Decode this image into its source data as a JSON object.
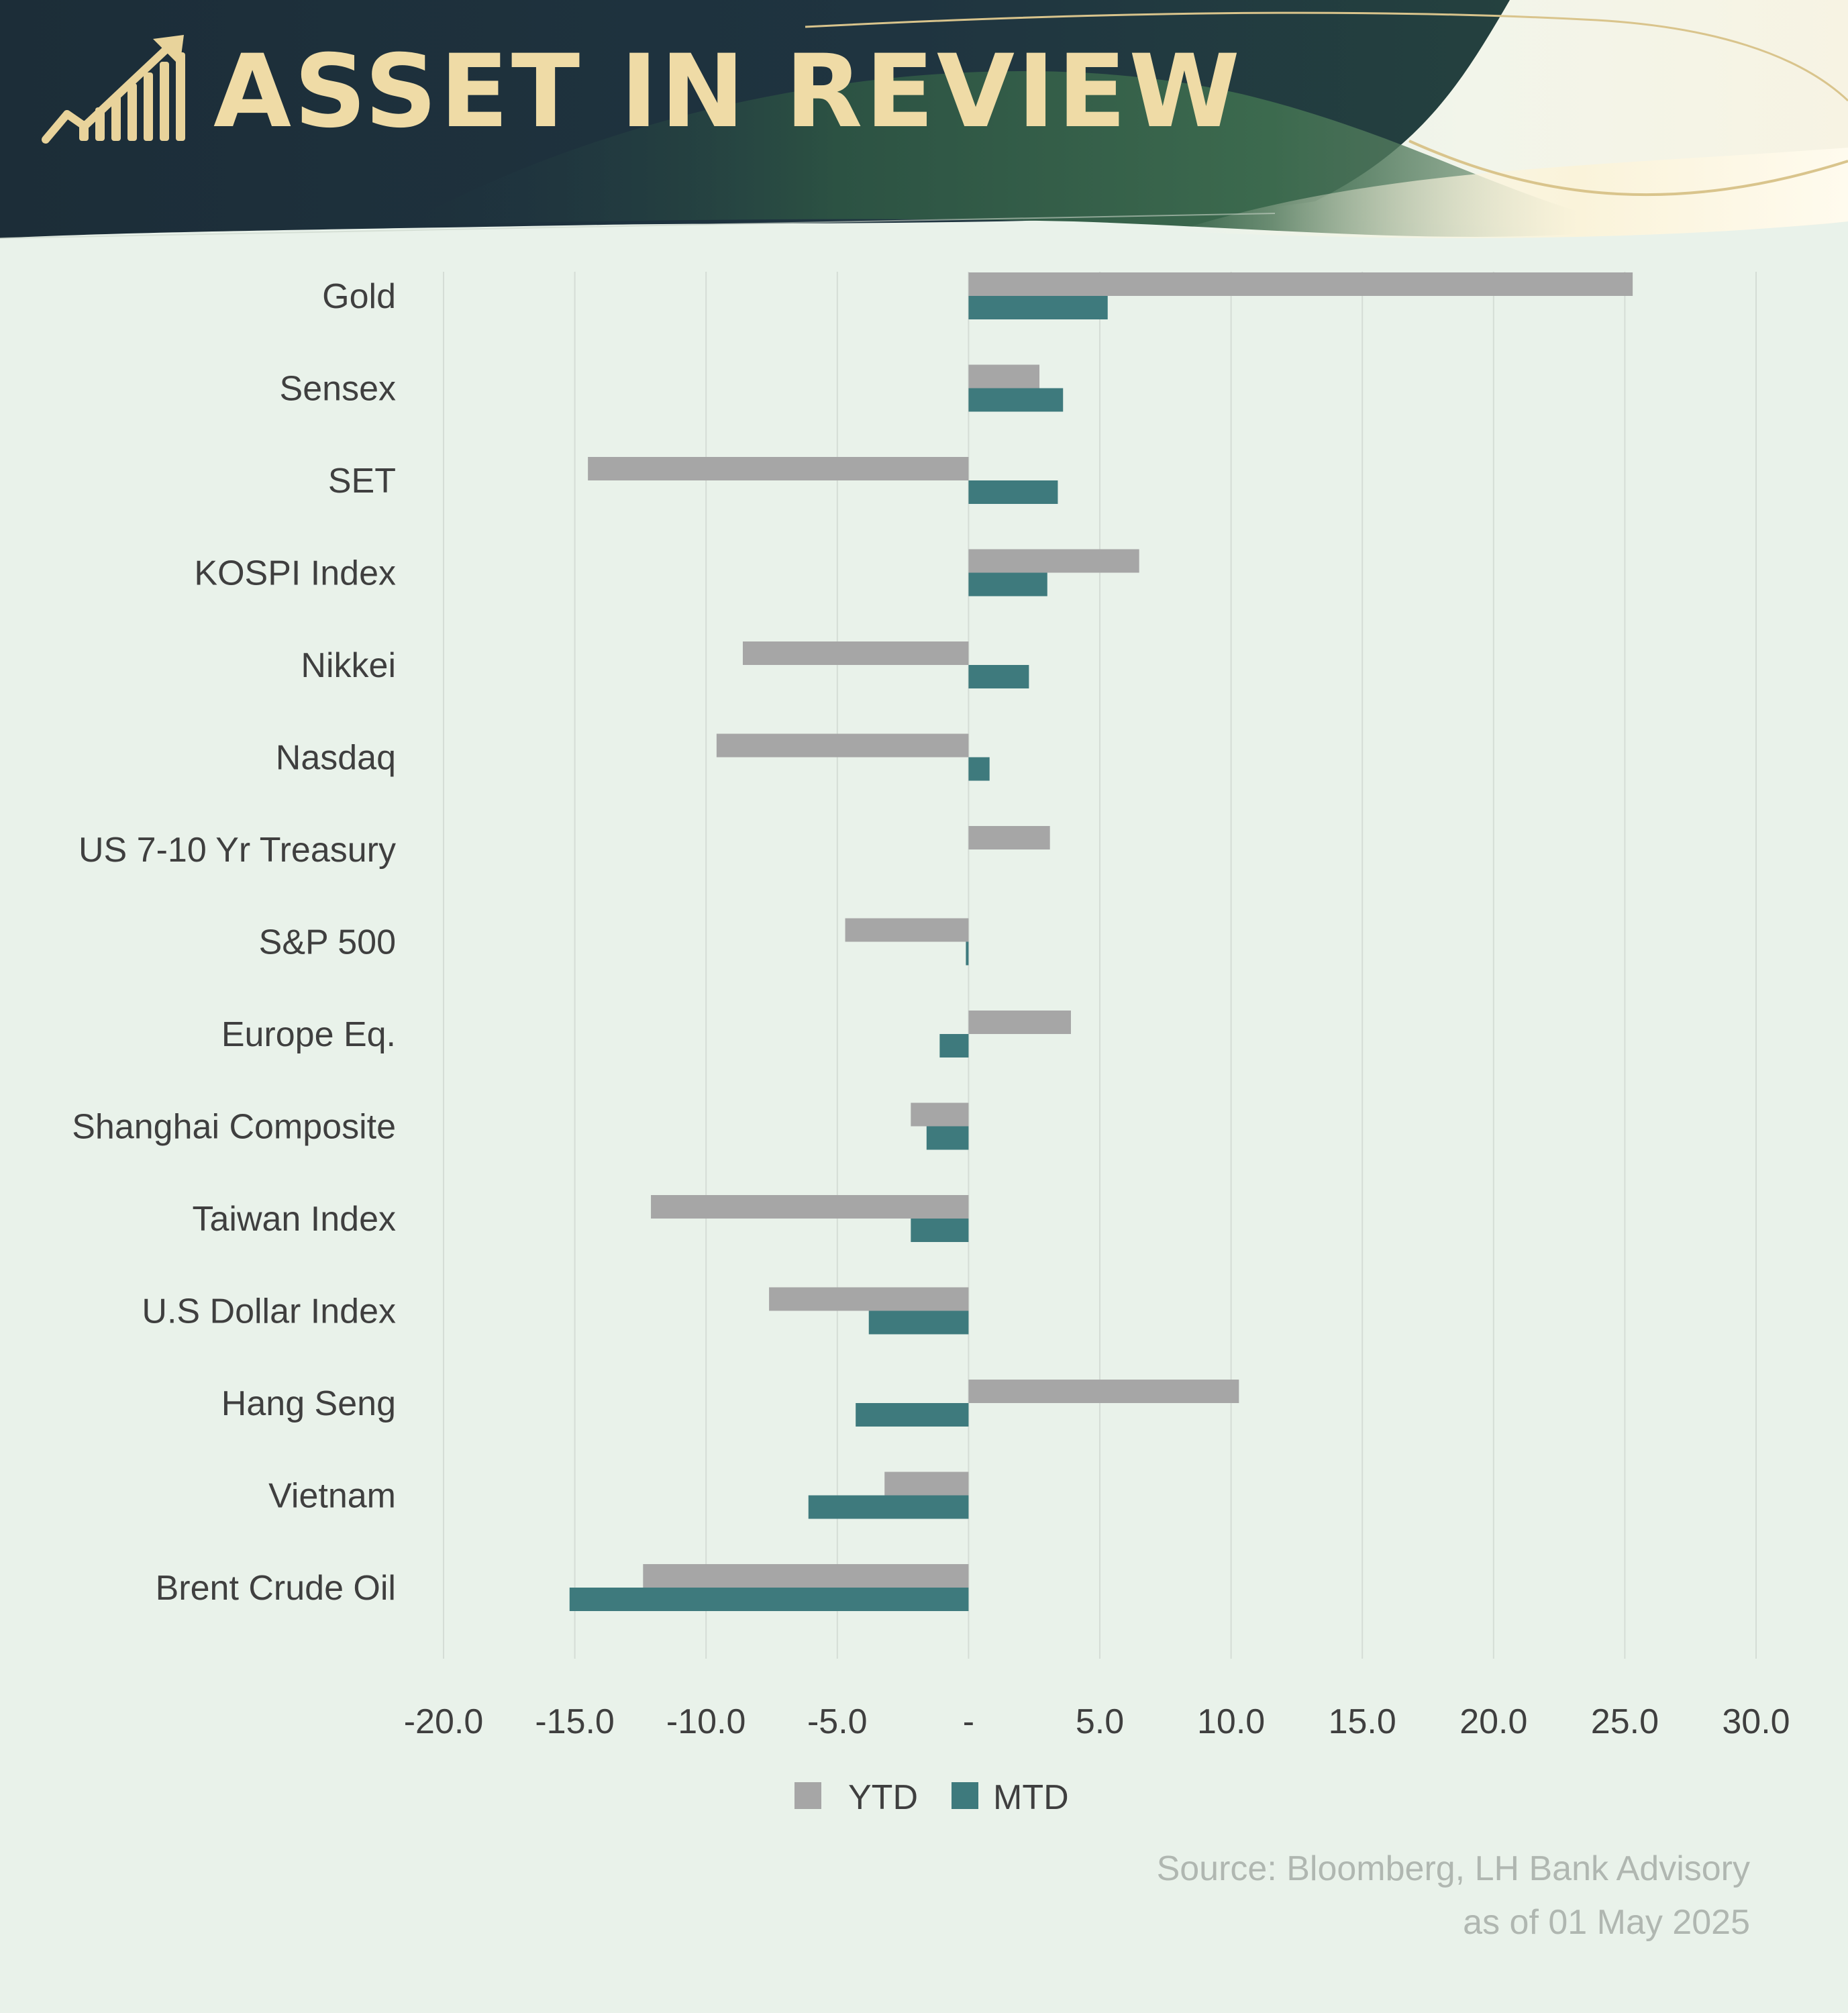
{
  "header": {
    "title": "ASSET IN REVIEW",
    "logo_icon": "bar-growth-arrow-icon"
  },
  "colors": {
    "banner_dark": "#1e2f3a",
    "banner_green": "#2f5a45",
    "title_gold": "#efdba6",
    "background": "#e9f2ea",
    "ytd": "#a6a6a6",
    "mtd": "#3e7a7d",
    "grid": "#d5ddd6",
    "label": "#3f3f3f",
    "source": "#b0b7b1"
  },
  "chart_data": {
    "type": "bar",
    "orientation": "horizontal",
    "categories": [
      "Gold",
      "Sensex",
      "SET",
      "KOSPI Index",
      "Nikkei",
      "Nasdaq",
      "US 7-10 Yr Treasury",
      "S&P 500",
      "Europe Eq.",
      "Shanghai Composite",
      "Taiwan Index",
      "U.S Dollar Index",
      "Hang Seng",
      "Vietnam",
      "Brent Crude Oil"
    ],
    "series": [
      {
        "name": "YTD",
        "color": "#a6a6a6",
        "values": [
          25.3,
          2.7,
          -14.5,
          6.5,
          -8.6,
          -9.6,
          3.1,
          -4.7,
          3.9,
          -2.2,
          -12.1,
          -7.6,
          10.3,
          -3.2,
          -12.4
        ]
      },
      {
        "name": "MTD",
        "color": "#3e7a7d",
        "values": [
          5.3,
          3.6,
          3.4,
          3.0,
          2.3,
          0.8,
          0.0,
          -0.1,
          -1.1,
          -1.6,
          -2.2,
          -3.8,
          -4.3,
          -6.1,
          -15.2
        ]
      }
    ],
    "xlim": [
      -20,
      30
    ],
    "xticks": [
      -20,
      -15,
      -10,
      -5,
      0,
      5,
      10,
      15,
      20,
      25,
      30
    ],
    "xtick_labels": [
      "-20.0",
      "-15.0",
      "-10.0",
      "-5.0",
      "-",
      "5.0",
      "10.0",
      "15.0",
      "20.0",
      "25.0",
      "30.0"
    ],
    "grid": true,
    "legend_position": "bottom-center",
    "title": "",
    "xlabel": "",
    "ylabel": ""
  },
  "footer": {
    "source": "Source: Bloomberg, LH Bank Advisory",
    "as_of": "as of 01 May 2025"
  }
}
